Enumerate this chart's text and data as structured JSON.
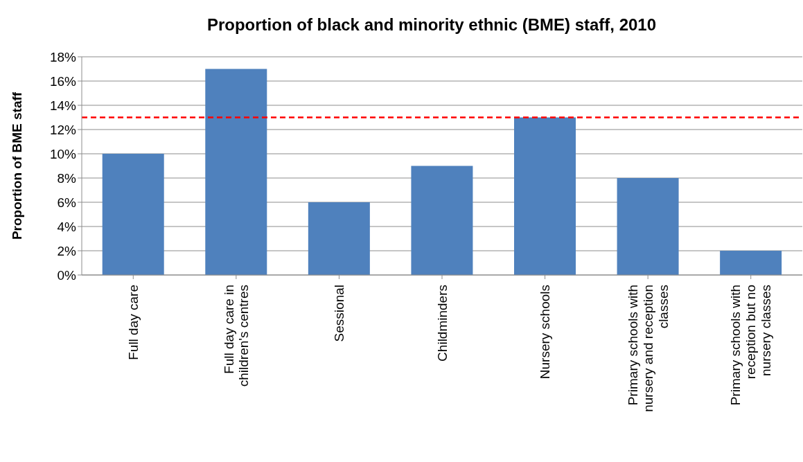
{
  "chart_data": {
    "type": "bar",
    "title": "Proportion of black and minority ethnic (BME) staff, 2010",
    "ylabel": "Proportion  of BME staff",
    "categories": [
      "Full day care",
      "Full day care in children's centres",
      "Sessional",
      "Childminders",
      "Nursery schools",
      "Primary schools with nursery and reception classes",
      "Primary schools with reception but no nursery classes"
    ],
    "values": [
      10,
      17,
      6,
      9,
      13,
      8,
      2
    ],
    "color": "#4f81bd",
    "ylim": [
      0,
      18
    ],
    "yticks": [
      {
        "value": 0,
        "label": "0%"
      },
      {
        "value": 2,
        "label": "2%"
      },
      {
        "value": 4,
        "label": "4%"
      },
      {
        "value": 6,
        "label": "6%"
      },
      {
        "value": 8,
        "label": "8%"
      },
      {
        "value": 10,
        "label": "10%"
      },
      {
        "value": 12,
        "label": "12%"
      },
      {
        "value": 14,
        "label": "14%"
      },
      {
        "value": 16,
        "label": "16%"
      },
      {
        "value": 18,
        "label": "18%"
      }
    ],
    "grid": "y",
    "legend": false,
    "ref_lines": [
      {
        "axis": "y",
        "value": 13,
        "color": "#ff0000",
        "line_style": "dashed"
      }
    ]
  }
}
